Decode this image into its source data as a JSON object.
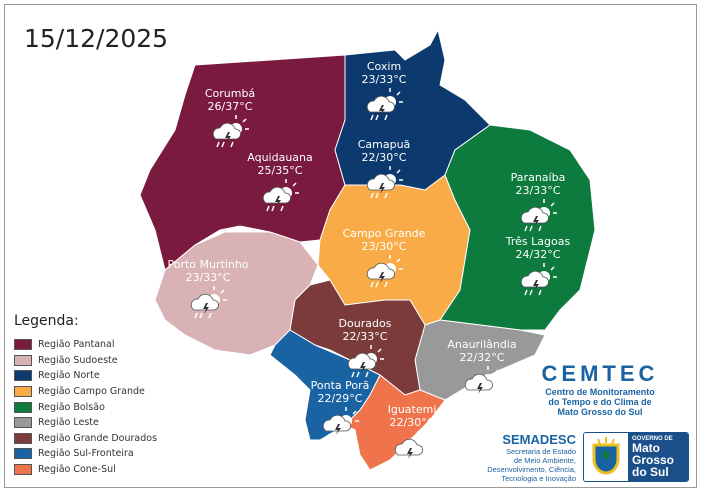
{
  "date": "15/12/2025",
  "legend": {
    "title": "Legenda:",
    "items": [
      {
        "label": "Região Pantanal",
        "color": "#7b1a3f"
      },
      {
        "label": "Região Sudoeste",
        "color": "#d9b2b5"
      },
      {
        "label": "Região Norte",
        "color": "#0d3a6e"
      },
      {
        "label": "Região Campo Grande",
        "color": "#f9ab47"
      },
      {
        "label": "Região Bolsão",
        "color": "#0d7a3e"
      },
      {
        "label": "Região Leste",
        "color": "#999999"
      },
      {
        "label": "Região Grande Dourados",
        "color": "#7b3b3b"
      },
      {
        "label": "Região Sul-Fronteira",
        "color": "#1a63a3"
      },
      {
        "label": "Região Cone-Sul",
        "color": "#f0744b"
      }
    ]
  },
  "cities": [
    {
      "name": "Corumbá",
      "temp": "26/37°C",
      "icon": "storm-sun-icon"
    },
    {
      "name": "Aquidauana",
      "temp": "25/35°C",
      "icon": "storm-sun-icon"
    },
    {
      "name": "Porto Murtinho",
      "temp": "23/33°C",
      "icon": "storm-sun-icon"
    },
    {
      "name": "Coxim",
      "temp": "23/33°C",
      "icon": "storm-sun-icon"
    },
    {
      "name": "Camapuã",
      "temp": "22/30°C",
      "icon": "storm-sun-icon"
    },
    {
      "name": "Campo Grande",
      "temp": "23/30°C",
      "icon": "storm-sun-icon"
    },
    {
      "name": "Paranaíba",
      "temp": "23/33°C",
      "icon": "rain-sun-icon"
    },
    {
      "name": "Três Lagoas",
      "temp": "24/32°C",
      "icon": "rain-sun-icon"
    },
    {
      "name": "Dourados",
      "temp": "22/33°C",
      "icon": "storm-sun-icon"
    },
    {
      "name": "Anaurilândia",
      "temp": "22/32°C",
      "icon": "storm-sun-icon"
    },
    {
      "name": "Ponta Porã",
      "temp": "22/29°C",
      "icon": "storm-sun-icon"
    },
    {
      "name": "Iguatemi",
      "temp": "22/30°C",
      "icon": "storm-sun-icon"
    }
  ],
  "cemtec": {
    "title": "CEMTEC",
    "subtitle": [
      "Centro de Monitoramento",
      "do Tempo e do Clima de",
      "Mato Grosso do Sul"
    ]
  },
  "semadesc": {
    "title": "SEMADESC",
    "subtitle": [
      "Secretaria de Estado",
      "de Meio Ambiente,",
      "Desenvolvimento, Ciência,",
      "Tecnologia e Inovação"
    ]
  },
  "gov": {
    "line1": "GOVERNO DE",
    "line2": "Mato",
    "line3": "Grosso",
    "line4": "do Sul"
  }
}
